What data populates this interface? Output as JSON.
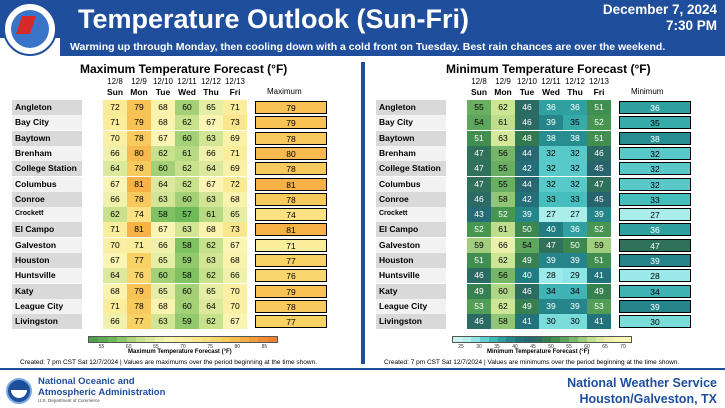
{
  "header": {
    "title": "Temperature Outlook (Sun-Fri)",
    "date": "December 7, 2024",
    "time": "7:30 PM",
    "subtitle": "Warming up through Monday, then cooling down with a cold front on Tuesday.  Best rain chances are over the weekend.",
    "logo_text": "NATIONAL WEATHER SERVICE"
  },
  "days": [
    {
      "date": "12/8",
      "dow": "Sun"
    },
    {
      "date": "12/9",
      "dow": "Mon"
    },
    {
      "date": "12/10",
      "dow": "Tue"
    },
    {
      "date": "12/11",
      "dow": "Wed"
    },
    {
      "date": "12/12",
      "dow": "Thu"
    },
    {
      "date": "12/13",
      "dow": "Fri"
    }
  ],
  "max": {
    "title": "Maximum Temperature Forecast (°F)",
    "summary_label": "Maximum",
    "colorbar_label": "Maximum Temperature Forecast (°F)",
    "colorbar_ticks": [
      "55",
      "60",
      "65",
      "70",
      "75",
      "80",
      "85"
    ],
    "created": "Created: 7 pm CST Sat 12/7/2024  |  Values are maximums over the period beginning at the time shown.",
    "rows": [
      {
        "city": "Angleton",
        "values": [
          72,
          79,
          68,
          60,
          65,
          71
        ],
        "summary": 79
      },
      {
        "city": "Bay City",
        "values": [
          71,
          79,
          68,
          62,
          67,
          73
        ],
        "summary": 79
      },
      {
        "city": "Baytown",
        "values": [
          70,
          78,
          67,
          60,
          63,
          69
        ],
        "summary": 78
      },
      {
        "city": "Brenham",
        "values": [
          66,
          80,
          62,
          61,
          66,
          71
        ],
        "summary": 80
      },
      {
        "city": "College Station",
        "values": [
          64,
          78,
          60,
          62,
          64,
          69
        ],
        "summary": 78
      },
      {
        "city": "Columbus",
        "values": [
          67,
          81,
          64,
          62,
          67,
          72
        ],
        "summary": 81
      },
      {
        "city": "Conroe",
        "values": [
          66,
          78,
          63,
          60,
          63,
          68
        ],
        "summary": 78
      },
      {
        "city": "Crockett",
        "values": [
          62,
          74,
          58,
          57,
          61,
          65
        ],
        "summary": 74
      },
      {
        "city": "El Campo",
        "values": [
          71,
          81,
          67,
          63,
          68,
          73
        ],
        "summary": 81
      },
      {
        "city": "Galveston",
        "values": [
          70,
          71,
          66,
          58,
          62,
          67
        ],
        "summary": 71
      },
      {
        "city": "Houston",
        "values": [
          67,
          77,
          65,
          59,
          63,
          68
        ],
        "summary": 77
      },
      {
        "city": "Huntsville",
        "values": [
          64,
          76,
          60,
          58,
          62,
          66
        ],
        "summary": 76
      },
      {
        "city": "Katy",
        "values": [
          68,
          79,
          65,
          60,
          65,
          70
        ],
        "summary": 79
      },
      {
        "city": "League City",
        "values": [
          71,
          78,
          68,
          60,
          64,
          70
        ],
        "summary": 78
      },
      {
        "city": "Livingston",
        "values": [
          66,
          77,
          63,
          59,
          62,
          67
        ],
        "summary": 77
      }
    ]
  },
  "min": {
    "title": "Minimum Temperature Forecast (°F)",
    "summary_label": "Minimum",
    "colorbar_label": "Minimum Temperature Forecast (°F)",
    "colorbar_ticks": [
      "25",
      "30",
      "35",
      "40",
      "45",
      "50",
      "55",
      "60",
      "65",
      "70"
    ],
    "created": "Created: 7 pm CST Sat 12/7/2024  |  Values are minimums over the period beginning at the time shown.",
    "rows": [
      {
        "city": "Angleton",
        "values": [
          55,
          62,
          46,
          36,
          36,
          51
        ],
        "summary": 36
      },
      {
        "city": "Bay City",
        "values": [
          54,
          61,
          46,
          39,
          35,
          52
        ],
        "summary": 35
      },
      {
        "city": "Baytown",
        "values": [
          51,
          63,
          48,
          38,
          38,
          51
        ],
        "summary": 38
      },
      {
        "city": "Brenham",
        "values": [
          47,
          56,
          44,
          32,
          32,
          46
        ],
        "summary": 32
      },
      {
        "city": "College Station",
        "values": [
          47,
          55,
          42,
          32,
          32,
          45
        ],
        "summary": 32
      },
      {
        "city": "Columbus",
        "values": [
          47,
          55,
          44,
          32,
          32,
          47
        ],
        "summary": 32
      },
      {
        "city": "Conroe",
        "values": [
          46,
          58,
          42,
          33,
          33,
          45
        ],
        "summary": 33
      },
      {
        "city": "Crockett",
        "values": [
          43,
          52,
          39,
          27,
          27,
          39
        ],
        "summary": 27
      },
      {
        "city": "El Campo",
        "values": [
          52,
          61,
          50,
          40,
          36,
          52
        ],
        "summary": 36
      },
      {
        "city": "Galveston",
        "values": [
          59,
          66,
          54,
          47,
          50,
          59
        ],
        "summary": 47
      },
      {
        "city": "Houston",
        "values": [
          51,
          62,
          49,
          39,
          39,
          51
        ],
        "summary": 39
      },
      {
        "city": "Huntsville",
        "values": [
          46,
          56,
          40,
          28,
          29,
          41
        ],
        "summary": 28
      },
      {
        "city": "Katy",
        "values": [
          49,
          60,
          46,
          34,
          34,
          49
        ],
        "summary": 34
      },
      {
        "city": "League City",
        "values": [
          53,
          62,
          49,
          39,
          39,
          53
        ],
        "summary": 39
      },
      {
        "city": "Livingston",
        "values": [
          46,
          58,
          41,
          30,
          30,
          41
        ],
        "summary": 30
      }
    ]
  },
  "footer": {
    "noaa_line1": "National Oceanic and",
    "noaa_line2": "Atmospheric Administration",
    "noaa_line3": "U.S. Department of Commerce",
    "nws_line1": "National Weather Service",
    "nws_line2": "Houston/Galveston, TX"
  },
  "colors": {
    "brand_blue": "#1f4e9c",
    "row_label_bg_even": "#d9d9d9",
    "row_label_bg_odd": "#f2f2f2"
  }
}
